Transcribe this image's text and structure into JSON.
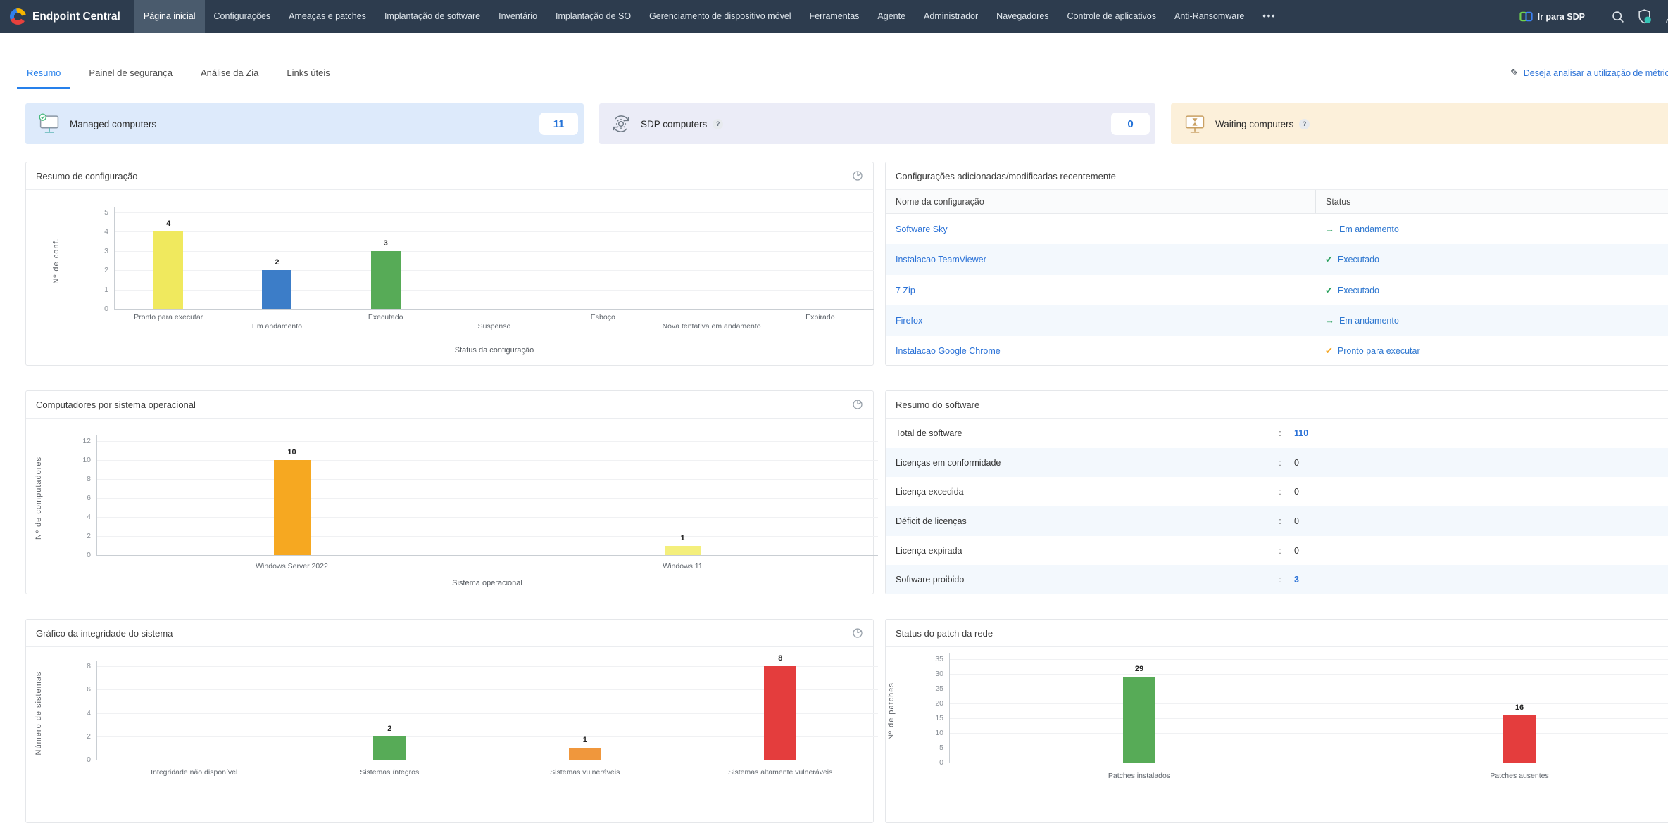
{
  "nav": {
    "brand": "Endpoint Central",
    "items": [
      {
        "label": "Página inicial",
        "active": true
      },
      {
        "label": "Configurações",
        "active": false
      },
      {
        "label": "Ameaças e patches",
        "active": false
      },
      {
        "label": "Implantação de software",
        "active": false
      },
      {
        "label": "Inventário",
        "active": false
      },
      {
        "label": "Implantação de SO",
        "active": false
      },
      {
        "label": "Gerenciamento de dispositivo móvel",
        "active": false
      },
      {
        "label": "Ferramentas",
        "active": false
      },
      {
        "label": "Agente",
        "active": false
      },
      {
        "label": "Administrador",
        "active": false
      },
      {
        "label": "Navegadores",
        "active": false
      },
      {
        "label": "Controle de aplicativos",
        "active": false
      },
      {
        "label": "Anti-Ransomware",
        "active": false
      }
    ],
    "more_label": "•••",
    "right": {
      "sdp_label": "Ir para SDP"
    }
  },
  "tabs": [
    {
      "label": "Resumo",
      "active": true
    },
    {
      "label": "Painel de segurança",
      "active": false
    },
    {
      "label": "Análise da Zia",
      "active": false
    },
    {
      "label": "Links úteis",
      "active": false
    }
  ],
  "metrics_link": {
    "label": "Deseja analisar a utilização de métric"
  },
  "misc": {
    "help_glyph": "?",
    "colon": ":"
  },
  "summary_cards": [
    {
      "label": "Managed computers",
      "value": "11",
      "icon": "monitor-check",
      "bg": "#ddeafb"
    },
    {
      "label": "SDP computers",
      "value": "0",
      "icon": "gear-sync",
      "bg": "#ebecf7"
    },
    {
      "label": "Waiting computers",
      "value": "",
      "icon": "monitor-hourglass",
      "bg": "#fcf0da"
    }
  ],
  "panels": {
    "config_summary": {
      "title": "Resumo de configuração"
    },
    "recent_configs": {
      "title": "Configurações adicionadas/modificadas recentemente",
      "columns": [
        "Nome da configuração",
        "Status"
      ],
      "rows": [
        {
          "name": "Software Sky",
          "status": "Em andamento",
          "status_icon": "arrow-right",
          "status_icon_color": "#28a05c"
        },
        {
          "name": "Instalacao TeamViewer",
          "status": "Executado",
          "status_icon": "check",
          "status_icon_color": "#28a05c"
        },
        {
          "name": "7 Zip",
          "status": "Executado",
          "status_icon": "check",
          "status_icon_color": "#28a05c"
        },
        {
          "name": "Firefox",
          "status": "Em andamento",
          "status_icon": "arrow-right",
          "status_icon_color": "#28a05c"
        },
        {
          "name": "Instalacao Google Chrome",
          "status": "Pronto para executar",
          "status_icon": "check",
          "status_icon_color": "#f5a623"
        }
      ]
    },
    "os_summary": {
      "title": "Computadores por sistema operacional"
    },
    "software_summary": {
      "title": "Resumo do software",
      "rows": [
        {
          "label": "Total de software",
          "value": "110",
          "link": true
        },
        {
          "label": "Licenças em conformidade",
          "value": "0",
          "link": false
        },
        {
          "label": "Licença excedida",
          "value": "0",
          "link": false
        },
        {
          "label": "Déficit de licenças",
          "value": "0",
          "link": false
        },
        {
          "label": "Licença expirada",
          "value": "0",
          "link": false
        },
        {
          "label": "Software proibido",
          "value": "3",
          "link": true
        }
      ]
    },
    "health_chart": {
      "title": "Gráfico da integridade do sistema"
    },
    "patch_chart": {
      "title": "Status do patch da rede"
    }
  },
  "chart_data": [
    {
      "id": "chart-config-status",
      "type": "bar",
      "title": "Resumo de configuração",
      "categories": [
        "Pronto para executar",
        "Em andamento",
        "Executado",
        "Suspenso",
        "Esboço",
        "Nova tentativa em andamento",
        "Expirado"
      ],
      "values": [
        4,
        2,
        3,
        0,
        0,
        0,
        0
      ],
      "colors": [
        "#f0e95e",
        "#3c7dc8",
        "#57ab57",
        "#cccccc",
        "#cccccc",
        "#cccccc",
        "#cccccc"
      ],
      "xlabel": "Status da configuração",
      "ylabel": "Nº de conf.",
      "ylim": [
        0,
        5
      ],
      "yticks": [
        0,
        1,
        2,
        3,
        4,
        5
      ],
      "grid": true,
      "legend": "none"
    },
    {
      "id": "chart-os",
      "type": "bar",
      "title": "Computadores por sistema operacional",
      "categories": [
        "Windows Server 2022",
        "Windows 11"
      ],
      "values": [
        10,
        1
      ],
      "colors": [
        "#f6a821",
        "#f4ef7c"
      ],
      "xlabel": "Sistema operacional",
      "ylabel": "Nº de computadores",
      "ylim": [
        0,
        12
      ],
      "yticks": [
        0,
        2,
        4,
        6,
        8,
        10,
        12
      ],
      "grid": true,
      "legend": "none"
    },
    {
      "id": "chart-health",
      "type": "bar",
      "title": "Gráfico da integridade do sistema",
      "categories": [
        "Integridade não disponível",
        "Sistemas íntegros",
        "Sistemas vulneráveis",
        "Sistemas altamente vulneráveis"
      ],
      "values": [
        0,
        2,
        1,
        8
      ],
      "colors": [
        "#cccccc",
        "#57ab57",
        "#f0973c",
        "#e43d3d"
      ],
      "xlabel": "",
      "ylabel": "Número de sistemas",
      "ylim": [
        0,
        8
      ],
      "yticks": [
        0,
        2,
        4,
        6,
        8
      ],
      "grid": true,
      "legend": "none"
    },
    {
      "id": "chart-patch",
      "type": "bar",
      "title": "Status do patch da rede",
      "categories": [
        "Patches instalados",
        "Patches ausentes"
      ],
      "values": [
        29,
        16
      ],
      "colors": [
        "#57ab57",
        "#e43d3d"
      ],
      "xlabel": "",
      "ylabel": "Nº de patches",
      "ylim": [
        0,
        35
      ],
      "yticks": [
        0,
        5,
        10,
        15,
        20,
        25,
        30,
        35
      ],
      "grid": true,
      "legend": "none"
    }
  ],
  "colors": {
    "nav_bg": "#2d3c4e",
    "accent_blue": "#2680eb",
    "link_blue": "#2b72d7",
    "status_green": "#28a05c",
    "status_orange": "#f5a623"
  }
}
